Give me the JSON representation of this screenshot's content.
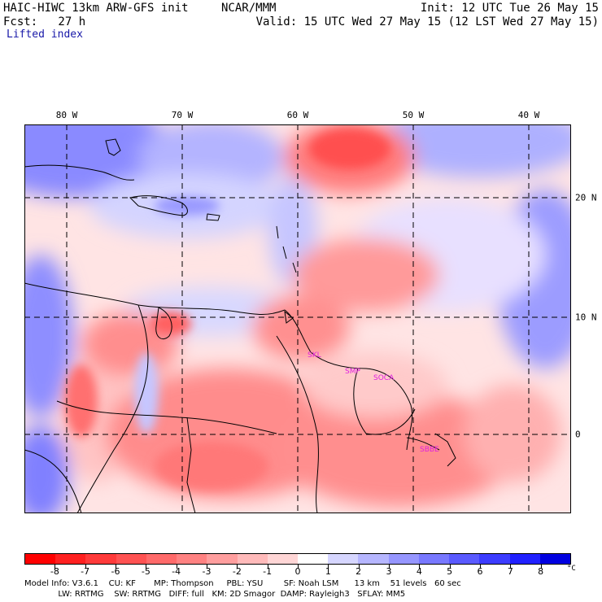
{
  "header": {
    "model": "HAIC-HIWC 13km ARW-GFS init",
    "org": "NCAR/MMM",
    "init": "Init: 12 UTC Tue 26 May 15",
    "fcst": "Fcst:   27 h",
    "valid": "Valid: 15 UTC Wed 27 May 15 (12 LST Wed 27 May 15)",
    "field": "Lifted index"
  },
  "lon_labels": [
    "80 W",
    "70 W",
    "60 W",
    "50 W",
    "40 W"
  ],
  "lat_labels": [
    "20 N",
    "10 N",
    "0"
  ],
  "stations": [
    "SKL",
    "SMP",
    "SOCA",
    "SBBE"
  ],
  "colorbar": {
    "ticks": [
      "-8",
      "-7",
      "-6",
      "-5",
      "-4",
      "-3",
      "-2",
      "-1",
      "0",
      "1",
      "2",
      "3",
      "4",
      "5",
      "6",
      "7",
      "8"
    ],
    "unit": "°C",
    "colors": [
      "#ff0000",
      "#ff2020",
      "#ff3a3a",
      "#ff5252",
      "#ff6a6a",
      "#ff8282",
      "#ff9e9e",
      "#ffbaba",
      "#ffd6d6",
      "#ffffff",
      "#d6d6ff",
      "#b6b6ff",
      "#9696ff",
      "#7878ff",
      "#5a5aff",
      "#3c3cff",
      "#2020ff",
      "#0000e0"
    ]
  },
  "footer": {
    "line1": "Model Info: V3.6.1    CU: KF       MP: Thompson     PBL: YSU        SF: Noah LSM      13 km    51 levels   60 sec",
    "line2": "             LW: RRTMG    SW: RRTMG   DIFF: full   KM: 2D Smagor  DAMP: Rayleigh3   SFLAY: MM5"
  }
}
